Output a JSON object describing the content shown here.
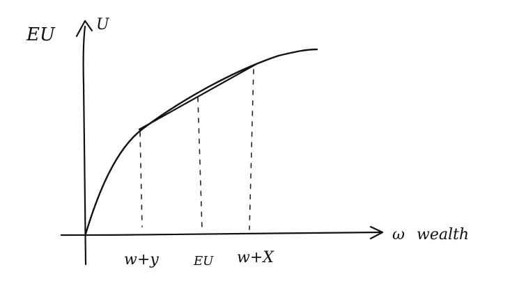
{
  "y_axis": {
    "label_left": "EU",
    "label_right": "U"
  },
  "x_axis": {
    "symbol": "ω",
    "label": "wealth"
  },
  "ticks": [
    {
      "key": "low",
      "label": "w+y"
    },
    {
      "key": "mid",
      "label": "EU"
    },
    {
      "key": "high",
      "label": "w+X"
    }
  ]
}
